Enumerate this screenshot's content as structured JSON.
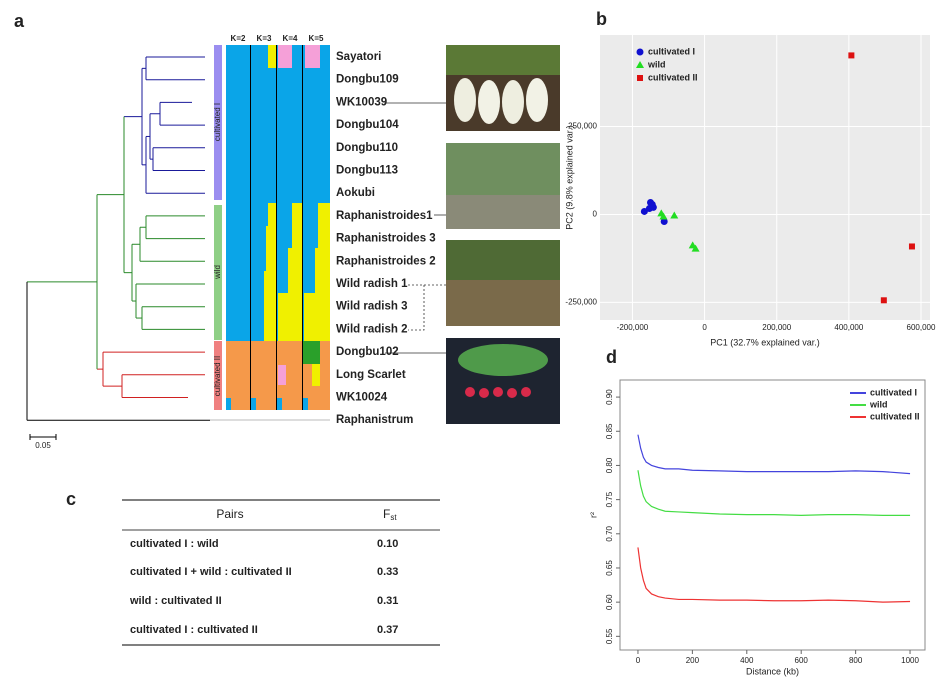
{
  "panel_labels": [
    "a",
    "b",
    "c",
    "d"
  ],
  "tree": {
    "leaves": [
      "Sayatori",
      "Dongbu109",
      "WK10039",
      "Dongbu104",
      "Dongbu110",
      "Dongbu113",
      "Aokubi",
      "Raphanistroides1",
      "Raphanistroides 3",
      "Raphanistroides 2",
      "Wild radish 1",
      "Wild radish 3",
      "Wild radish 2",
      "Dongbu102",
      "Long Scarlet",
      "WK10024",
      "Raphanistrum"
    ],
    "groups": [
      "cultivated I",
      "wild",
      "cultivated II"
    ],
    "scale_label": "0.05"
  },
  "structure": {
    "k_labels": [
      "K=2",
      "K=3",
      "K=4",
      "K=5"
    ]
  },
  "table": {
    "header": {
      "pairs": "Pairs",
      "fst": "F",
      "fst_sub": "st"
    },
    "rows": [
      [
        "cultivated I : wild",
        "0.10"
      ],
      [
        "cultivated I + wild : cultivated II",
        "0.33"
      ],
      [
        "wild : cultivated II",
        "0.31"
      ],
      [
        "cultivated I : cultivated II",
        "0.37"
      ]
    ]
  },
  "chart_data": [
    {
      "type": "scatter",
      "x_label": "PC1 (32.7% explained var.)",
      "y_label": "PC2 (9.8% explained var.)",
      "xlim": [
        -290000,
        625000
      ],
      "ylim": [
        -300000,
        510000
      ],
      "xticks": [
        {
          "value": -200000,
          "label": "-200,000"
        },
        0,
        {
          "value": 200000,
          "label": "200,000"
        },
        {
          "value": 400000,
          "label": "400,000"
        },
        {
          "value": 600000,
          "label": "600,000"
        }
      ],
      "yticks": [
        {
          "value": -250000,
          "label": "-250,000"
        },
        0,
        {
          "value": 250000,
          "label": "250,000"
        }
      ],
      "grid": true,
      "legend": "top-left",
      "series": [
        {
          "name": "cultivated I",
          "color": "#1010d0",
          "marker": "circle",
          "x": [
            -167000,
            -153000,
            -145000,
            -142000,
            -112000,
            -150000
          ],
          "values": [
            8500,
            17000,
            28400,
            20000,
            -20000,
            34000
          ]
        },
        {
          "name": "wild",
          "color": "#22dd22",
          "marker": "triangle",
          "x": [
            -120000,
            -114000,
            -84000,
            -33000,
            -25000
          ],
          "values": [
            3000,
            -6000,
            -3000,
            -88000,
            -97000
          ]
        },
        {
          "name": "cultivated II",
          "color": "#dd1111",
          "marker": "square",
          "x": [
            407000,
            575000,
            497000
          ],
          "values": [
            452000,
            -91000,
            -244000
          ]
        }
      ]
    },
    {
      "type": "line",
      "x_label": "Distance (kb)",
      "y_label": "r²",
      "x": [
        0,
        10,
        20,
        30,
        50,
        75,
        100,
        150,
        200,
        300,
        400,
        500,
        600,
        700,
        800,
        900,
        1000
      ],
      "xlim": [
        -66,
        1055
      ],
      "ylim": [
        0.53,
        0.925
      ],
      "xticks": [
        0,
        200,
        400,
        600,
        800,
        1000
      ],
      "yticks": [
        0.55,
        {
          "value": 0.6,
          "label": "0.60"
        },
        0.65,
        {
          "value": 0.7,
          "label": "0.70"
        },
        0.75,
        {
          "value": 0.8,
          "label": "0.80"
        },
        0.85,
        {
          "value": 0.9,
          "label": "0.90"
        }
      ],
      "legend": "top-right",
      "series": [
        {
          "name": "cultivated I",
          "color": "#4444dd",
          "values": [
            0.845,
            0.825,
            0.812,
            0.805,
            0.8,
            0.797,
            0.795,
            0.795,
            0.793,
            0.792,
            0.791,
            0.791,
            0.791,
            0.791,
            0.792,
            0.791,
            0.788
          ]
        },
        {
          "name": "wild",
          "color": "#44dd44",
          "values": [
            0.793,
            0.77,
            0.755,
            0.747,
            0.74,
            0.736,
            0.733,
            0.732,
            0.731,
            0.729,
            0.728,
            0.728,
            0.727,
            0.728,
            0.728,
            0.727,
            0.727
          ]
        },
        {
          "name": "cultivated II",
          "color": "#ee3333",
          "values": [
            0.68,
            0.65,
            0.632,
            0.62,
            0.612,
            0.608,
            0.606,
            0.604,
            0.604,
            0.603,
            0.603,
            0.602,
            0.602,
            0.603,
            0.602,
            0.6,
            0.601
          ]
        }
      ]
    }
  ]
}
